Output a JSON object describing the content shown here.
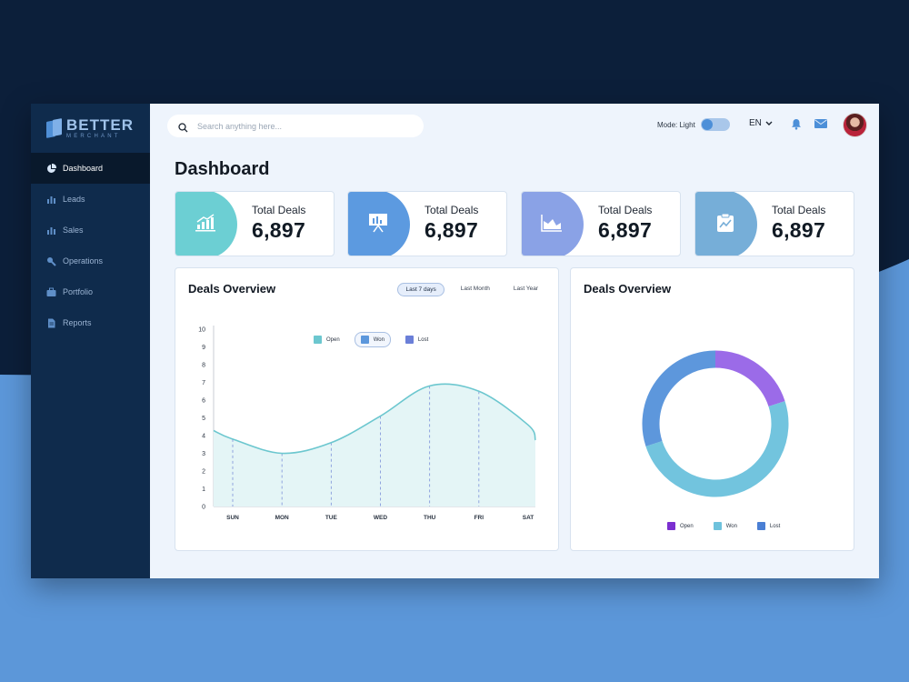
{
  "app": {
    "logo_main": "BETTER",
    "logo_sub": "MERCHANT"
  },
  "sidebar": {
    "items": [
      {
        "label": "Dashboard",
        "icon": "pie-chart-icon",
        "active": true
      },
      {
        "label": "Leads",
        "icon": "bar-chart-icon",
        "active": false
      },
      {
        "label": "Sales",
        "icon": "bar-chart-icon",
        "active": false
      },
      {
        "label": "Operations",
        "icon": "wrench-icon",
        "active": false
      },
      {
        "label": "Portfolio",
        "icon": "briefcase-icon",
        "active": false
      },
      {
        "label": "Reports",
        "icon": "document-icon",
        "active": false
      }
    ]
  },
  "topbar": {
    "search_placeholder": "Search anything here...",
    "mode_label": "Mode: Light",
    "language": "EN"
  },
  "page": {
    "title": "Dashboard"
  },
  "stats": [
    {
      "label": "Total Deals",
      "value": "6,897",
      "color": "#6ccfd3",
      "icon": "growth-chart-icon"
    },
    {
      "label": "Total Deals",
      "value": "6,897",
      "color": "#5c9ae0",
      "icon": "presentation-icon"
    },
    {
      "label": "Total Deals",
      "value": "6,897",
      "color": "#8aa2e6",
      "icon": "area-chart-icon"
    },
    {
      "label": "Total Deals",
      "value": "6,897",
      "color": "#76aed8",
      "icon": "clipboard-icon"
    }
  ],
  "line_panel": {
    "title": "Deals Overview",
    "ranges": [
      "Last 7 days",
      "Last Month",
      "Last Year"
    ],
    "active_range": 0
  },
  "donut_panel": {
    "title": "Deals Overview"
  },
  "colors": {
    "open": "#7b2fd0",
    "won": "#6ec2dc",
    "lost": "#4a7fd4",
    "line": "#6cc7cf",
    "area": "#e4f5f6"
  },
  "chart_data": [
    {
      "type": "area",
      "categories": [
        "SUN",
        "MON",
        "TUE",
        "WED",
        "THU",
        "FRI",
        "SAT"
      ],
      "yticks": [
        0,
        1,
        2,
        3,
        4,
        5,
        6,
        7,
        8,
        9,
        10
      ],
      "ylim": [
        0,
        10
      ],
      "legend": [
        "Open",
        "Won",
        "Lost"
      ],
      "active_legend": "Won",
      "series": [
        {
          "name": "Won",
          "values": [
            3.8,
            3.0,
            3.6,
            5.1,
            6.8,
            6.5,
            4.6
          ]
        }
      ],
      "grid": false,
      "legend_position": "top-center"
    },
    {
      "type": "pie",
      "donut": true,
      "legend": [
        "Open",
        "Won",
        "Lost"
      ],
      "slices": [
        {
          "name": "Open",
          "value": 20,
          "color": "#9b6be8"
        },
        {
          "name": "Won",
          "value": 50,
          "color": "#72c4de"
        },
        {
          "name": "Lost",
          "value": 30,
          "color": "#5d97dc"
        }
      ],
      "legend_position": "bottom"
    }
  ]
}
